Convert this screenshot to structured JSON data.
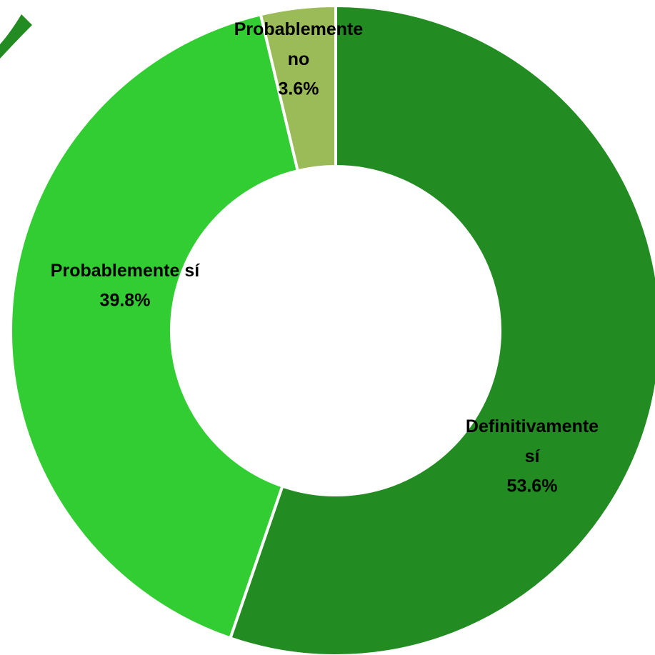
{
  "chart_data": {
    "type": "donut",
    "categories": [
      "Definitivamente sí",
      "Probablemente sí",
      "Probablemente no"
    ],
    "values": [
      53.6,
      39.8,
      3.6
    ],
    "value_labels": [
      "53.6%",
      "39.8%",
      "3.6%"
    ],
    "colors": [
      "#228b22",
      "#32cd32",
      "#9bbb59"
    ]
  }
}
